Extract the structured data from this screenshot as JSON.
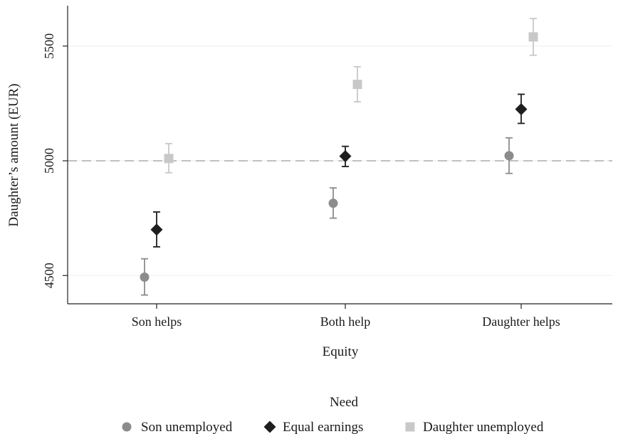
{
  "chart_data": {
    "type": "scatter",
    "xlabel": "Equity",
    "ylabel": "Daughter’s amount (EUR)",
    "categories": [
      "Son helps",
      "Both help",
      "Daughter helps"
    ],
    "yticks": [
      4500,
      5000,
      5500
    ],
    "ylim": [
      4390,
      5670
    ],
    "reference_line": 5000,
    "grid": true,
    "legend_title": "Need",
    "legend_position": "bottom",
    "series": [
      {
        "name": "Son unemployed",
        "marker": "circle",
        "color": "#8c8c8c",
        "values": [
          4493,
          4815,
          5022
        ],
        "ci_low": [
          4415,
          4750,
          4945
        ],
        "ci_high": [
          4573,
          4882,
          5100
        ]
      },
      {
        "name": "Equal earnings",
        "marker": "diamond",
        "color": "#1e1e1e",
        "values": [
          4700,
          5020,
          5225
        ],
        "ci_low": [
          4625,
          4975,
          5163
        ],
        "ci_high": [
          4777,
          5063,
          5290
        ]
      },
      {
        "name": "Daughter unemployed",
        "marker": "square",
        "color": "#c8c8c8",
        "values": [
          5010,
          5333,
          5540
        ],
        "ci_low": [
          4948,
          5257,
          5460
        ],
        "ci_high": [
          5075,
          5410,
          5620
        ]
      }
    ]
  }
}
